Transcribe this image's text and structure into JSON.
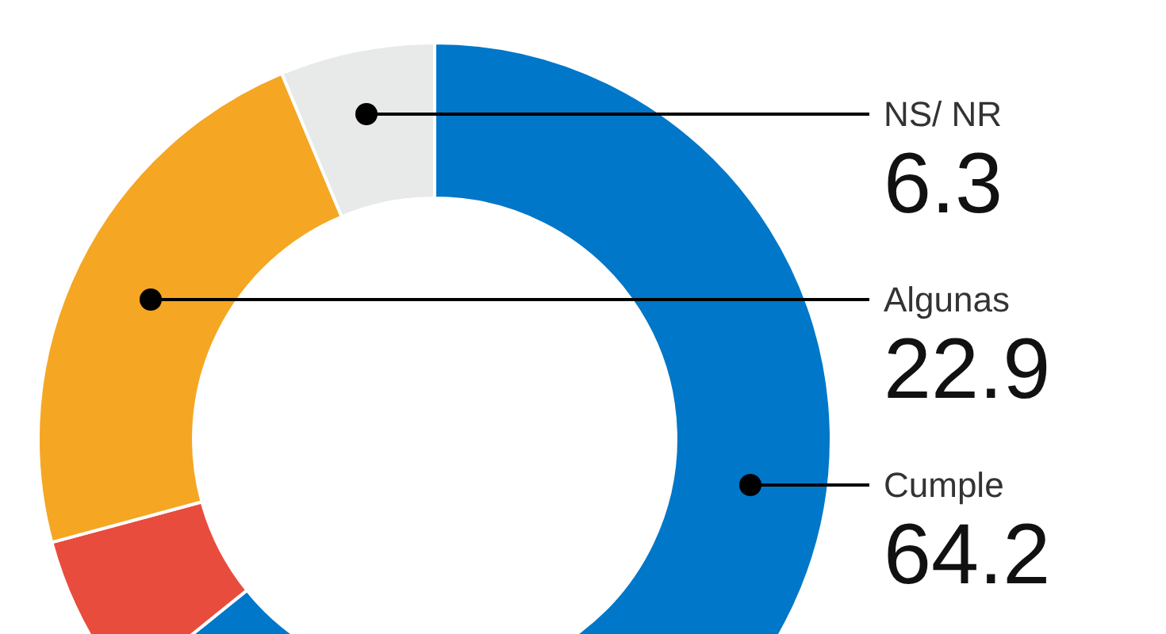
{
  "chart_data": {
    "type": "donut",
    "categories": [
      "Cumple",
      null,
      "Algunas",
      "NS/ NR"
    ],
    "values": [
      64.2,
      6.6,
      22.9,
      6.3
    ],
    "colors": [
      "#0077c8",
      "#e84c3d",
      "#f5a623",
      "#e8e9e9"
    ],
    "value_labels": [
      "64.2",
      null,
      "22.9",
      "6.3"
    ]
  }
}
